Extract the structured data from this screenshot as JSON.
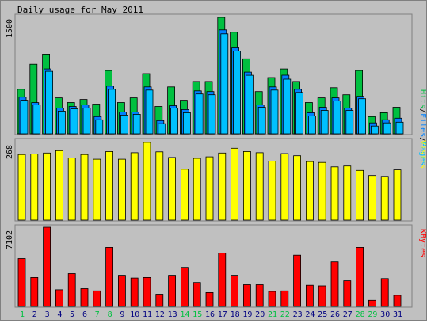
{
  "title": "Daily usage for May 2011",
  "colors": {
    "hits": "#00c040",
    "files": "#0080ff",
    "pages": "#00c0ff",
    "visits": "#ffff00",
    "kbytes": "#ff0000",
    "weekday_label": "#000080",
    "weekend_label": "#00c040"
  },
  "legend": {
    "pages": "Pages",
    "files": "Files",
    "hits": "Hits",
    "slash": "/",
    "visits": "Visits",
    "kbytes": "KBytes"
  },
  "chart_data": {
    "type": "bar",
    "title": "Daily usage for May 2011",
    "categories": [
      "1",
      "2",
      "3",
      "4",
      "5",
      "6",
      "7",
      "8",
      "9",
      "10",
      "11",
      "12",
      "13",
      "14",
      "15",
      "16",
      "17",
      "18",
      "19",
      "20",
      "21",
      "22",
      "23",
      "24",
      "25",
      "26",
      "27",
      "28",
      "29",
      "30",
      "31"
    ],
    "weekend_days": [
      "1",
      "7",
      "8",
      "14",
      "15",
      "21",
      "22",
      "28",
      "29"
    ],
    "panels": [
      {
        "name": "hits-files-pages",
        "ymax_label": "1500",
        "ylim": [
          0,
          1500
        ],
        "series": [
          {
            "name": "Hits",
            "values": [
              570,
              890,
              1020,
              460,
              400,
              440,
              380,
              810,
              400,
              460,
              770,
              350,
              600,
              430,
              670,
              670,
              1490,
              1300,
              960,
              540,
              720,
              830,
              670,
              400,
              460,
              590,
              500,
              810,
              220,
              270,
              340
            ]
          },
          {
            "name": "Files",
            "values": [
              490,
              420,
              850,
              350,
              370,
              390,
              240,
              630,
              300,
              300,
              620,
              190,
              380,
              330,
              570,
              560,
              1350,
              1120,
              810,
              390,
              620,
              770,
              590,
              290,
              360,
              480,
              350,
              500,
              160,
              200,
              220
            ]
          },
          {
            "name": "Pages",
            "values": [
              470,
              410,
              840,
              330,
              360,
              370,
              220,
              610,
              280,
              290,
              600,
              170,
              370,
              310,
              550,
              540,
              1320,
              1100,
              790,
              380,
              600,
              740,
              570,
              270,
              340,
              460,
              340,
              490,
              140,
              180,
              190
            ]
          }
        ]
      },
      {
        "name": "visits",
        "ymax_label": "268",
        "ylim": [
          0,
          268
        ],
        "series": [
          {
            "name": "Visits",
            "values": [
              222,
              224,
              227,
              235,
              210,
              222,
              206,
              232,
              206,
              228,
              263,
              231,
              212,
              172,
              209,
              214,
              227,
              243,
              232,
              228,
              200,
              225,
              218,
              198,
              195,
              180,
              183,
              168,
              151,
              148,
              170
            ]
          }
        ]
      },
      {
        "name": "kbytes",
        "ymax_label": "7102",
        "ylim": [
          0,
          7102
        ],
        "series": [
          {
            "name": "KBytes",
            "values": [
              4300,
              2600,
              7102,
              1500,
              2950,
              1600,
              1400,
              5300,
              2800,
              2550,
              2600,
              1100,
              2800,
              3500,
              2150,
              1250,
              4800,
              2800,
              1950,
              1950,
              1350,
              1400,
              4600,
              1900,
              1850,
              4000,
              2300,
              5300,
              550,
              2500,
              1000
            ]
          }
        ]
      }
    ]
  }
}
